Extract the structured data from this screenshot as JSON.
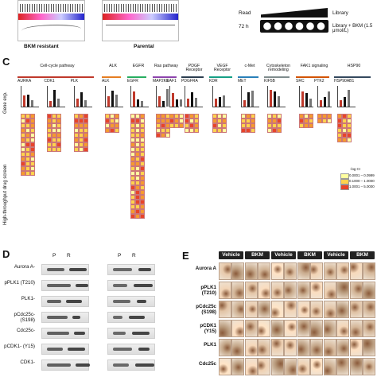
{
  "panel_a": {
    "left_plot_label": "BKM resistant",
    "right_plot_label": "Parental"
  },
  "panel_b": {
    "read_label": "Read",
    "time_label": "72 h",
    "library_label": "Library",
    "treatment_label": "Library + BKM (1.5 μmol/L)"
  },
  "panel_c": {
    "letter": "C",
    "pathways": [
      {
        "label": "Cell-cycle pathway",
        "color": "#c0392b",
        "genes": [
          "AURKA",
          "CDK1",
          "PLK"
        ]
      },
      {
        "label": "ALK",
        "color": "#e67e22",
        "genes": [
          "ALK"
        ]
      },
      {
        "label": "EGFR",
        "color": "#27ae60",
        "genes": [
          "EGFR"
        ]
      },
      {
        "label": "Ras pathway",
        "color": "#8e44ad",
        "genes": [
          "MAP2K1",
          "RAF1"
        ]
      },
      {
        "label": "PDGF Receptor",
        "color": "#2c3e50",
        "genes": [
          "PDGFRA"
        ]
      },
      {
        "label": "VEGF Receptor",
        "color": "#16a085",
        "genes": [
          "KDR"
        ]
      },
      {
        "label": "c-Met",
        "color": "#2980b9",
        "genes": [
          "MET"
        ]
      },
      {
        "label": "Cytoskeleton remodeling",
        "color": "#7f8c8d",
        "genes": [
          "KIF5B"
        ]
      },
      {
        "label": "FAK1 signaling",
        "color": "#d35400",
        "genes": [
          "SRC",
          "PTK2"
        ]
      },
      {
        "label": "HSP90",
        "color": "#34495e",
        "genes": [
          "HSP90AB1"
        ]
      }
    ],
    "row_label_top": "Gene exp.",
    "row_label_bottom": "High-throughput drug screen",
    "legend_title": "-log CI",
    "legend": [
      {
        "text": "0.0001 – 0.0999",
        "color": "#ffffa0"
      },
      {
        "text": "0.1000 – 1.0000",
        "color": "#ffd24d"
      },
      {
        "text": "1.0001 – 5.0000",
        "color": "#e8442a"
      }
    ],
    "heat_colors": [
      "#ffffa0",
      "#ffd24d",
      "#f59a2f",
      "#e8442a"
    ]
  },
  "panel_d": {
    "letter": "D",
    "col_labels": [
      "P",
      "R",
      "P",
      "R"
    ],
    "rows": [
      "Aurora A-",
      "pPLK1 (T210)",
      "PLK1-",
      "pCdc25c- (S198)",
      "Cdc25c-",
      "pCDK1- (Y15)",
      "CDK1-"
    ]
  },
  "panel_e": {
    "letter": "E",
    "headers": [
      "Vehicle",
      "BKM",
      "Vehicle",
      "BKM",
      "Vehicle",
      "BKM"
    ],
    "rows": [
      "Aurora A",
      "pPLK1 (T210)",
      "pCdc25c (S198)",
      "pCDK1 (Y15)",
      "PLK1",
      "Cdc25c"
    ]
  }
}
